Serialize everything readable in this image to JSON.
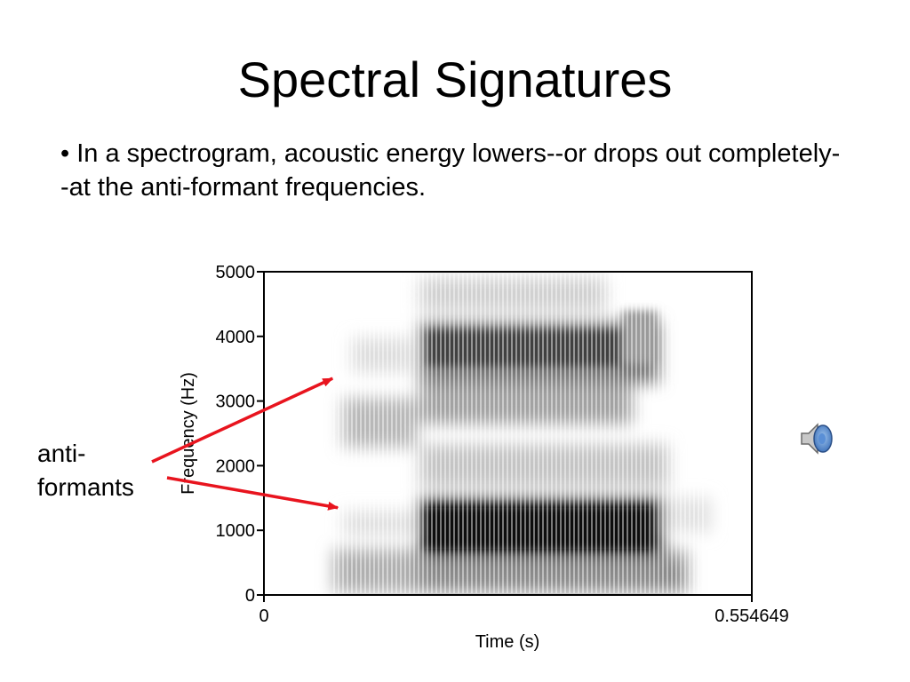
{
  "slide": {
    "title": "Spectral Signatures",
    "bullet": "• In a spectrogram, acoustic energy lowers--or drops out completely--at the anti-formant frequencies.",
    "callout_line1": "anti-",
    "callout_line2": "formants"
  },
  "chart_data": {
    "type": "heatmap",
    "xlabel": "Time (s)",
    "ylabel": "Frequency (Hz)",
    "xlim": [
      0,
      0.554649
    ],
    "ylim": [
      0,
      5000
    ],
    "x_tick_labels": [
      "0",
      "0.554649"
    ],
    "y_ticks": [
      0,
      1000,
      2000,
      3000,
      4000,
      5000
    ],
    "y_tick_labels": [
      "0",
      "1000",
      "2000",
      "3000",
      "4000",
      "5000"
    ],
    "grid": false,
    "colormap": "grayscale",
    "annotations": [
      {
        "label": "anti-formants",
        "target_time": 0.078,
        "target_freq": 3350,
        "color": "#e8141e"
      },
      {
        "label": "anti-formants",
        "target_time": 0.084,
        "target_freq": 1350,
        "color": "#e8141e"
      }
    ]
  },
  "icons": {
    "speaker": "speaker-audio-icon"
  },
  "colors": {
    "arrow": "#e8141e",
    "spectrogram_dark": "#1a1a1a",
    "background": "#ffffff"
  }
}
